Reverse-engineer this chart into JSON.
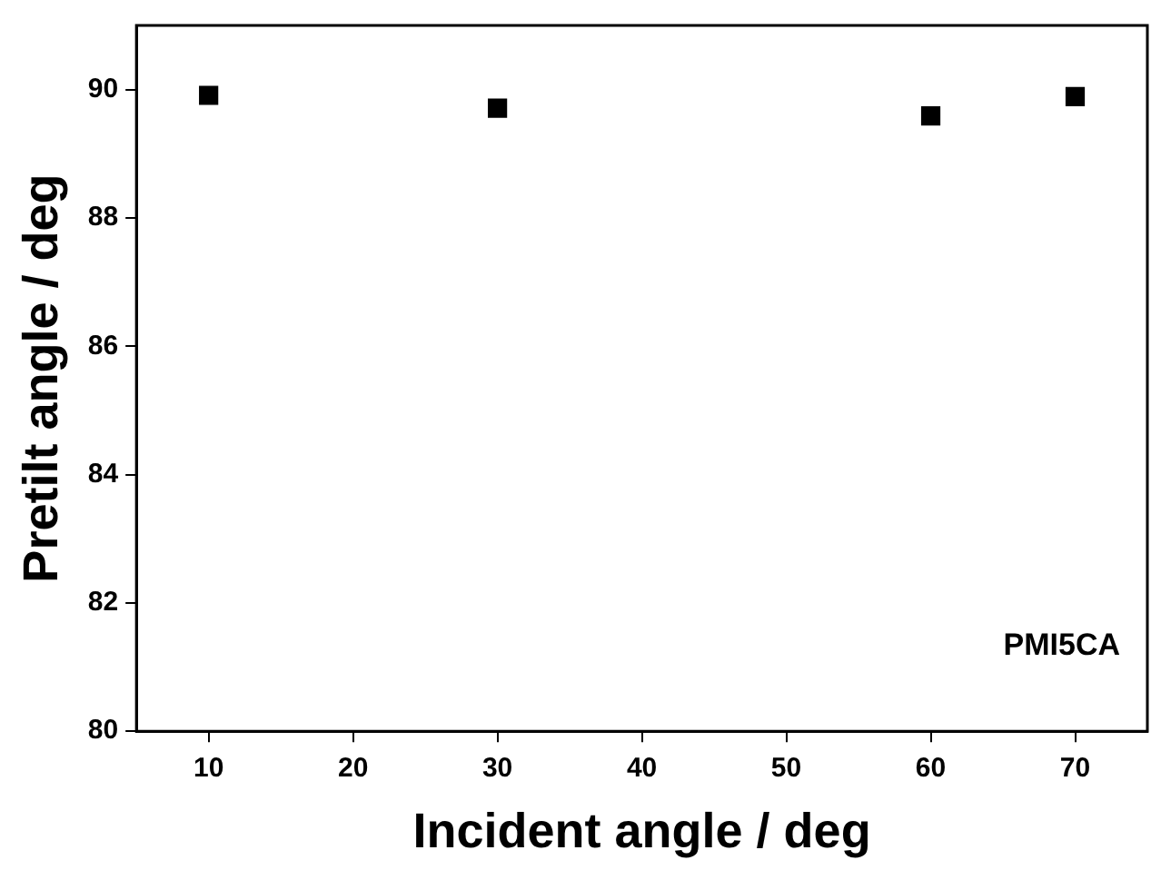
{
  "chart_data": {
    "type": "scatter",
    "xlabel": "Incident angle / deg",
    "ylabel": "Pretilt angle / deg",
    "x": [
      10,
      30,
      60,
      70
    ],
    "series": [
      {
        "color": "#000000",
        "values": [
          89.91,
          89.71,
          89.59,
          89.89
        ]
      }
    ],
    "xlim": [
      5,
      75
    ],
    "xticks": [
      10,
      20,
      30,
      40,
      50,
      60,
      70
    ],
    "ylim": [
      80,
      91
    ],
    "yticks": [
      80,
      82,
      84,
      86,
      88,
      90
    ],
    "annotations": [
      "PMI5CA"
    ],
    "marker": "square",
    "grid": false,
    "legend": false
  }
}
